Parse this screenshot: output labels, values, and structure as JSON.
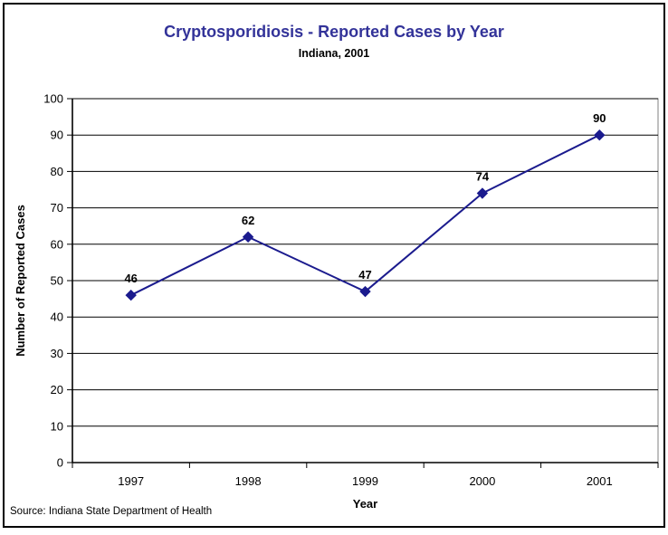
{
  "window": {
    "background": "#ffffff",
    "border_color": "#000000"
  },
  "chart_data": {
    "type": "line",
    "title": "Cryptosporidiosis - Reported Cases by Year",
    "subtitle": "Indiana, 2001",
    "title_color": "#333399",
    "categories": [
      "1997",
      "1998",
      "1999",
      "2000",
      "2001"
    ],
    "values": [
      46,
      62,
      47,
      74,
      90
    ],
    "data_labels": [
      "46",
      "62",
      "47",
      "74",
      "90"
    ],
    "xlabel": "Year",
    "ylabel": "Number of Reported Cases",
    "ylim": [
      0,
      100
    ],
    "ytick_step": 10,
    "ytick_labels": [
      "0",
      "10",
      "20",
      "30",
      "40",
      "50",
      "60",
      "70",
      "80",
      "90",
      "100"
    ],
    "grid": true,
    "legend": "none",
    "line_color": "#1b1b8e",
    "marker": "diamond",
    "marker_color": "#1b1b8e",
    "gridline_color": "#000000",
    "axis_color": "#000000",
    "plot_border_color": "#808080",
    "tick_label_color": "#000000",
    "data_label_color": "#000000",
    "source_note": "Source: Indiana State Department of Health"
  }
}
